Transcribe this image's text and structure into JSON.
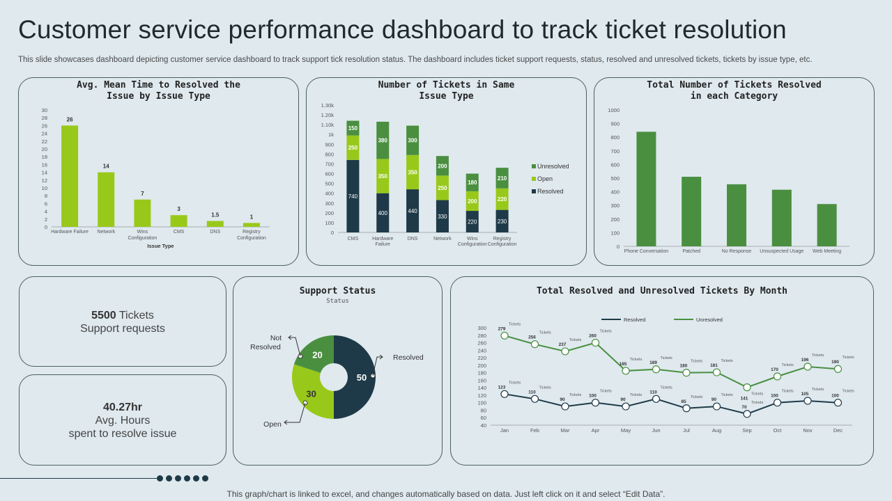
{
  "page": {
    "title": "Customer service performance dashboard to track ticket resolution",
    "subtitle": "This slide showcases dashboard depicting customer service dashboard to track support tick resolution status. The dashboard includes ticket support requests, status, resolved and unresolved tickets, tickets by issue type, etc.",
    "footer": "This graph/chart is linked to excel, and changes automatically based on data. Just left click on it and select “Edit Data”."
  },
  "colors": {
    "lime": "#98c91a",
    "green": "#4a8f40",
    "dark": "#1e3a48",
    "bg": "#dfe9ee"
  },
  "kpis": {
    "tickets": {
      "value": "5500",
      "unit": " Tickets",
      "label": "Support requests"
    },
    "hours": {
      "value": "40.27hr",
      "label1": "Avg. Hours",
      "label2": "spent to resolve issue"
    }
  },
  "chart_data": [
    {
      "id": "mean-time",
      "type": "bar",
      "title_line1": "Avg. Mean Time to Resolved the",
      "title_line2": "Issue by Issue Type",
      "categories": [
        "Hardware Failure",
        "Network",
        "Wins Configuration",
        "CMS",
        "DNS",
        "Registry Configuration"
      ],
      "category_lines": [
        [
          "Hardware Failure"
        ],
        [
          "Network"
        ],
        [
          "Wins",
          "Configuration"
        ],
        [
          "CMS"
        ],
        [
          "DNS"
        ],
        [
          "Registry",
          "Configuration"
        ]
      ],
      "values": [
        26,
        14,
        7,
        3,
        1.5,
        1
      ],
      "value_labels": [
        "26",
        "14",
        "7",
        "3",
        "1.5",
        "1"
      ],
      "xlabel": "Issue Type",
      "ylim": [
        0,
        30
      ],
      "yticks": [
        "0",
        "2",
        "4",
        "6",
        "8",
        "10",
        "12",
        "14",
        "16",
        "18",
        "20",
        "22",
        "24",
        "26",
        "28",
        "30"
      ]
    },
    {
      "id": "same-issue",
      "type": "bar",
      "stacked": true,
      "title_line1": "Number of Tickets in Same",
      "title_line2": "Issue Type",
      "categories": [
        "CMS",
        "Hardware Failure",
        "DNS",
        "Network",
        "Wins Configuration",
        "Registry Configuration"
      ],
      "category_lines": [
        [
          "CMS"
        ],
        [
          "Hardware",
          "Failure"
        ],
        [
          "DNS"
        ],
        [
          "Network"
        ],
        [
          "Wins",
          "Configuration"
        ],
        [
          "Registry",
          "Configuration"
        ]
      ],
      "series": [
        {
          "name": "Resolved",
          "values": [
            740,
            400,
            440,
            330,
            220,
            230
          ]
        },
        {
          "name": "Open",
          "values": [
            250,
            350,
            350,
            250,
            200,
            220
          ]
        },
        {
          "name": "Unresolved",
          "values": [
            150,
            380,
            300,
            200,
            180,
            210
          ]
        }
      ],
      "legend": [
        "Unresolved",
        "Open",
        "Resolved"
      ],
      "ylim": [
        0,
        1300
      ],
      "yticks": [
        "0",
        "100",
        "200",
        "300",
        "400",
        "500",
        "600",
        "700",
        "800",
        "900",
        "1k",
        "1.10k",
        "1.20k",
        "1.30k"
      ]
    },
    {
      "id": "resolved-category",
      "type": "bar",
      "title_line1": "Total Number of Tickets Resolved",
      "title_line2": "in each Category",
      "categories": [
        "Phone Conversation",
        "Patched",
        "No Response",
        "Unsuspected Usage",
        "Web Meeting"
      ],
      "values": [
        840,
        510,
        455,
        415,
        310
      ],
      "ylim": [
        0,
        1000
      ],
      "yticks": [
        "0",
        "100",
        "200",
        "300",
        "400",
        "500",
        "600",
        "700",
        "800",
        "900",
        "1000"
      ]
    },
    {
      "id": "support-status",
      "type": "pie",
      "title": "Support Status",
      "subtitle": "Status",
      "slices": [
        {
          "name": "Resolved",
          "value": 50,
          "label": "50"
        },
        {
          "name": "Open",
          "value": 30,
          "label": "30"
        },
        {
          "name": "Not Resolved",
          "value": 20,
          "label": "20"
        }
      ],
      "callouts": {
        "resolved": "Resolved",
        "open": "Open",
        "not_resolved_1": "Not",
        "not_resolved_2": "Resolved"
      }
    },
    {
      "id": "by-month",
      "type": "line",
      "title": "Total Resolved and Unresolved Tickets By Month",
      "categories": [
        "Jan",
        "Feb",
        "Mar",
        "Apr",
        "May",
        "Jun",
        "Jul",
        "Aug",
        "Sep",
        "Oct",
        "Nov",
        "Dec"
      ],
      "series": [
        {
          "name": "Resolved",
          "values": [
            123,
            110,
            90,
            100,
            90,
            110,
            85,
            90,
            70,
            100,
            105,
            100
          ]
        },
        {
          "name": "Unresolved",
          "values": [
            279,
            256,
            237,
            260,
            185,
            189,
            180,
            181,
            141,
            170,
            196,
            190
          ]
        }
      ],
      "point_suffix": "Tickets",
      "ylim": [
        40,
        300
      ],
      "yticks": [
        "40",
        "60",
        "80",
        "100",
        "120",
        "140",
        "160",
        "180",
        "200",
        "220",
        "240",
        "260",
        "280",
        "300"
      ]
    }
  ]
}
